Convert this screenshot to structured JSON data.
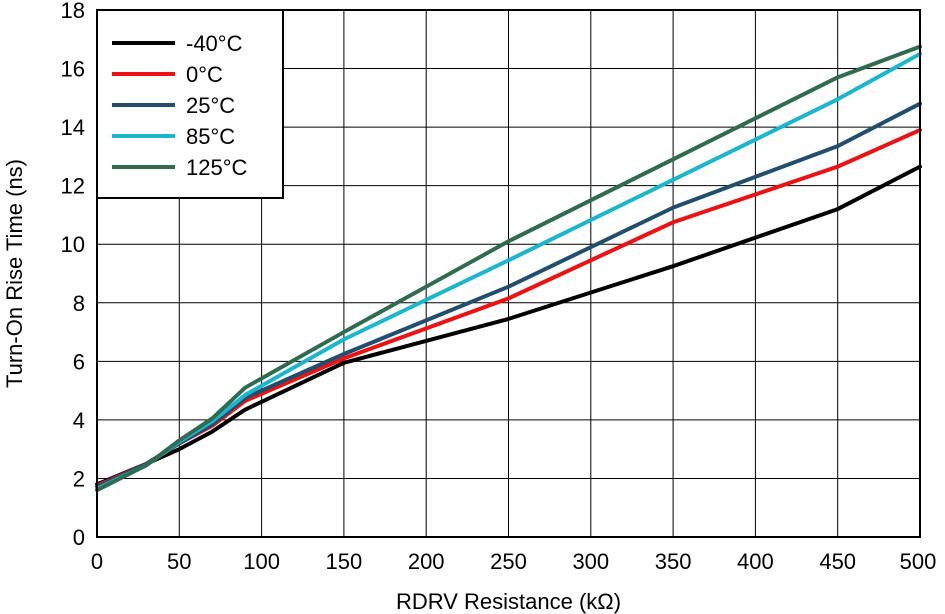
{
  "chart_data": {
    "type": "line",
    "xlabel": "RDRV Resistance (kΩ)",
    "ylabel": "Turn-On Rise Time (ns)",
    "xlim": [
      0,
      500
    ],
    "ylim": [
      0,
      18
    ],
    "xticks": [
      0,
      50,
      100,
      150,
      200,
      250,
      300,
      350,
      400,
      450,
      500
    ],
    "yticks": [
      0,
      2,
      4,
      6,
      8,
      10,
      12,
      14,
      16,
      18
    ],
    "grid": true,
    "legend_position": "top-left",
    "x": [
      0,
      30,
      50,
      70,
      90,
      150,
      250,
      350,
      450,
      500
    ],
    "series": [
      {
        "name": "-40°C",
        "color": "#000000",
        "values": [
          1.8,
          2.5,
          3.0,
          3.6,
          4.35,
          5.95,
          7.45,
          9.25,
          11.2,
          12.65
        ]
      },
      {
        "name": "0°C",
        "color": "#ee1111",
        "values": [
          1.75,
          2.5,
          3.2,
          3.8,
          4.65,
          6.1,
          8.15,
          10.75,
          12.65,
          13.9
        ]
      },
      {
        "name": "25°C",
        "color": "#1f4e6e",
        "values": [
          1.7,
          2.5,
          3.2,
          3.85,
          4.75,
          6.25,
          8.55,
          11.25,
          13.35,
          14.8
        ]
      },
      {
        "name": "85°C",
        "color": "#18b6cf",
        "values": [
          1.65,
          2.45,
          3.25,
          3.95,
          4.85,
          6.75,
          9.45,
          12.2,
          14.95,
          16.5
        ]
      },
      {
        "name": "125°C",
        "color": "#2f6b4f",
        "values": [
          1.6,
          2.45,
          3.3,
          4.05,
          5.1,
          7.0,
          10.1,
          12.9,
          15.7,
          16.75
        ]
      }
    ]
  }
}
